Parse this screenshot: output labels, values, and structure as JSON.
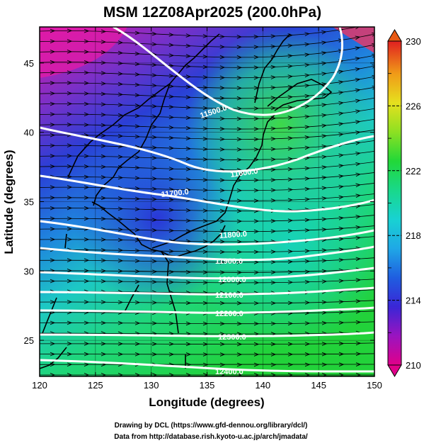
{
  "title": "MSM 12Z08Apr2025 (200.0hPa)",
  "axes": {
    "xlabel": "Longitude (degrees)",
    "ylabel": "Latitude  (degrees)",
    "xlim": [
      120,
      150
    ],
    "ylim": [
      22.4,
      47.6
    ],
    "xticks": [
      "120",
      "125",
      "130",
      "135",
      "140",
      "145",
      "150"
    ],
    "yticks": [
      "25",
      "30",
      "35",
      "40",
      "45"
    ]
  },
  "colorbar": {
    "min": 210,
    "max": 230,
    "labels": [
      "230",
      "226",
      "222",
      "218",
      "214",
      "210"
    ],
    "stops": [
      "#e0008a",
      "#7a18c8",
      "#1f2fd8",
      "#1f8ee6",
      "#18d0d2",
      "#19d88a",
      "#22d828",
      "#9ee022",
      "#e6e01e",
      "#f0a018",
      "#ec5c12",
      "#e02020"
    ]
  },
  "contours": {
    "color": "#ffffff",
    "labels": [
      "11500.0",
      "11600.0",
      "11700.0",
      "11800.0",
      "11900.0",
      "12000.0",
      "12100.0",
      "12200.0",
      "12300.0",
      "12400.0"
    ]
  },
  "credits": {
    "line1": "Drawing by DCL (https://www.gfd-dennou.org/library/dcl/)",
    "line2": "Data from http://database.rish.kyoto-u.ac.jp/arch/jmadata/"
  }
}
